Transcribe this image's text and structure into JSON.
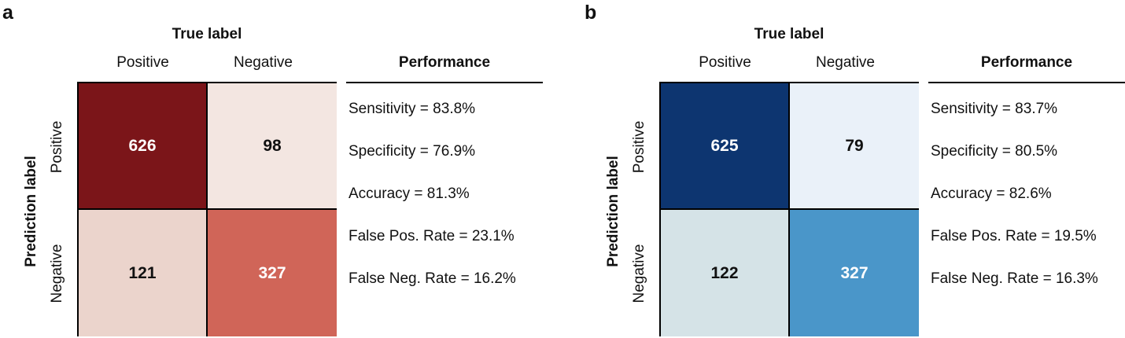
{
  "chart_data": [
    {
      "type": "heatmap",
      "panel": "a",
      "title": "",
      "xlabel": "True label",
      "ylabel": "Prediction label",
      "x_categories": [
        "Positive",
        "Negative"
      ],
      "y_categories": [
        "Positive",
        "Negative"
      ],
      "matrix": [
        [
          626,
          98
        ],
        [
          121,
          327
        ]
      ],
      "cell_colors": [
        [
          "#7b1519",
          "#f3e6e1"
        ],
        [
          "#ebd4cc",
          "#d06558"
        ]
      ],
      "cell_text_colors": [
        [
          "#ffffff",
          "#111111"
        ],
        [
          "#111111",
          "#ffffff"
        ]
      ],
      "colormap": "reds",
      "performance": {
        "title": "Performance",
        "metrics": [
          "Sensitivity = 83.8%",
          "Specificity = 76.9%",
          "Accuracy = 81.3%",
          "False Pos. Rate = 23.1%",
          "False Neg. Rate = 16.2%"
        ]
      }
    },
    {
      "type": "heatmap",
      "panel": "b",
      "title": "",
      "xlabel": "True label",
      "ylabel": "Prediction label",
      "x_categories": [
        "Positive",
        "Negative"
      ],
      "y_categories": [
        "Positive",
        "Negative"
      ],
      "matrix": [
        [
          625,
          79
        ],
        [
          122,
          327
        ]
      ],
      "cell_colors": [
        [
          "#0d3570",
          "#eaf1f9"
        ],
        [
          "#d5e3e7",
          "#4a96c9"
        ]
      ],
      "cell_text_colors": [
        [
          "#ffffff",
          "#111111"
        ],
        [
          "#111111",
          "#ffffff"
        ]
      ],
      "colormap": "blues",
      "performance": {
        "title": "Performance",
        "metrics": [
          "Sensitivity = 83.7%",
          "Specificity = 80.5%",
          "Accuracy = 82.6%",
          "False Pos. Rate = 19.5%",
          "False Neg. Rate = 16.3%"
        ]
      }
    }
  ]
}
